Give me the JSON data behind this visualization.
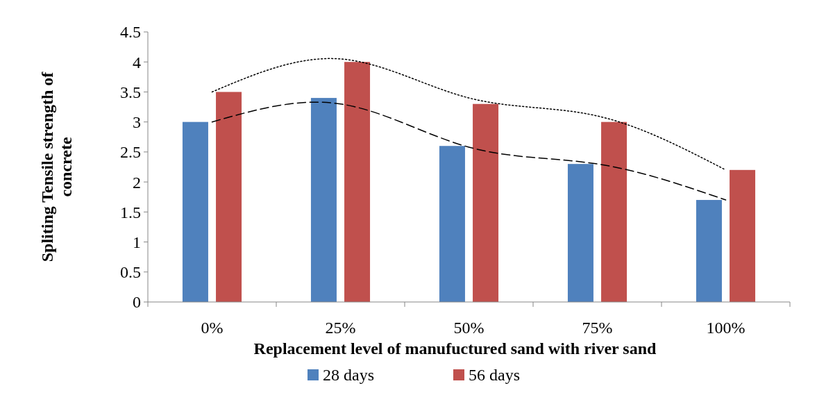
{
  "chart_data": {
    "type": "bar",
    "xlabel": "Replacement level of manufuctured sand with  river sand",
    "ylabel": "Spliting Tensile strength of concrete",
    "categories": [
      "0%",
      "25%",
      "50%",
      "75%",
      "100%"
    ],
    "series": [
      {
        "name": "28 days",
        "color": "#4f81bd",
        "values": [
          3,
          3.4,
          2.6,
          2.3,
          1.7
        ]
      },
      {
        "name": "56 days",
        "color": "#c0504d",
        "values": [
          3.5,
          4,
          3.3,
          3,
          2.2
        ]
      },
      {
        "type": "line",
        "color": "#000000",
        "line_style": "dashed",
        "values": [
          3.0,
          3.3,
          2.58,
          2.3,
          1.7
        ]
      },
      {
        "type": "line",
        "color": "#000000",
        "line_style": "dotted",
        "values": [
          3.5,
          4.05,
          3.4,
          3.1,
          2.2
        ]
      }
    ],
    "ylim": [
      0,
      4.5
    ],
    "yticks": [
      0,
      0.5,
      1,
      1.5,
      2,
      2.5,
      3,
      3.5,
      4,
      4.5
    ],
    "grid": false,
    "legend": "bottom"
  }
}
